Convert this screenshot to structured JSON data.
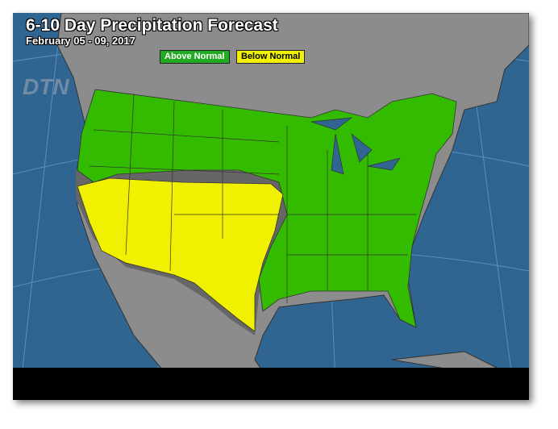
{
  "title": "6-10 Day Precipitation Forecast",
  "subtitle": "February 05 - 09, 2017",
  "legend": [
    {
      "label": "Above Normal",
      "color": "#33bb00"
    },
    {
      "label": "Below Normal",
      "color": "#f0f000"
    }
  ],
  "logo": "DTN",
  "colors": {
    "ocean": "#2f6590",
    "land": "#8c8c8c",
    "band": "#666666",
    "above": "#33bb00",
    "below": "#f0f000"
  }
}
